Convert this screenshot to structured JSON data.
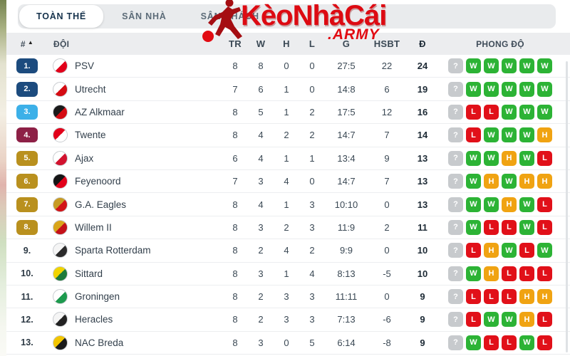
{
  "tabs": [
    {
      "id": "overall",
      "label": "TOÀN THỂ",
      "active": true
    },
    {
      "id": "home",
      "label": "SÂN NHÀ",
      "active": false
    },
    {
      "id": "away",
      "label": "SÂN KHÁCH",
      "active": false
    }
  ],
  "watermark": {
    "title": "KèoNhàCái",
    "suffix": ".ARMY",
    "icon": "soccer-player-icon",
    "color": "#e20b12"
  },
  "sort_icon": "▲",
  "form_colors": {
    "W": "#2cb335",
    "H": "#f0a312",
    "L": "#e11019",
    "?": "#c7cacd"
  },
  "badge_colors": {
    "navy": "#1c4b7e",
    "sky": "#3cb0e8",
    "maroon": "#8d2046",
    "gold": "#b9901e"
  },
  "table": {
    "headers": {
      "pos": "#",
      "team": "ĐỘI",
      "played": "TR",
      "wins": "W",
      "draws": "H",
      "losses": "L",
      "goals": "G",
      "diff": "HSBT",
      "points": "Đ",
      "form": "PHONG ĐỘ"
    },
    "rows": [
      {
        "pos": "1.",
        "badge": "#1c4b7e",
        "team": "PSV",
        "logo": {
          "c1": "#ffffff",
          "c2": "#e2001a"
        },
        "tr": "8",
        "w": "8",
        "h": "0",
        "l": "0",
        "g": "27:5",
        "diff": "22",
        "pts": "24",
        "form": [
          "?",
          "W",
          "W",
          "W",
          "W",
          "W"
        ]
      },
      {
        "pos": "2.",
        "badge": "#1c4b7e",
        "team": "Utrecht",
        "logo": {
          "c1": "#ffffff",
          "c2": "#d50b12"
        },
        "tr": "7",
        "w": "6",
        "h": "1",
        "l": "0",
        "g": "14:8",
        "diff": "6",
        "pts": "19",
        "form": [
          "?",
          "W",
          "W",
          "W",
          "W",
          "W"
        ]
      },
      {
        "pos": "3.",
        "badge": "#3cb0e8",
        "team": "AZ Alkmaar",
        "logo": {
          "c1": "#1a1a1a",
          "c2": "#d50b12"
        },
        "tr": "8",
        "w": "5",
        "h": "1",
        "l": "2",
        "g": "17:5",
        "diff": "12",
        "pts": "16",
        "form": [
          "?",
          "L",
          "L",
          "W",
          "W",
          "W"
        ]
      },
      {
        "pos": "4.",
        "badge": "#8d2046",
        "team": "Twente",
        "logo": {
          "c1": "#e2001a",
          "c2": "#ffffff"
        },
        "tr": "8",
        "w": "4",
        "h": "2",
        "l": "2",
        "g": "14:7",
        "diff": "7",
        "pts": "14",
        "form": [
          "?",
          "L",
          "W",
          "W",
          "W",
          "H"
        ]
      },
      {
        "pos": "5.",
        "badge": "#b9901e",
        "team": "Ajax",
        "logo": {
          "c1": "#ffffff",
          "c2": "#d2122e"
        },
        "tr": "6",
        "w": "4",
        "h": "1",
        "l": "1",
        "g": "13:4",
        "diff": "9",
        "pts": "13",
        "form": [
          "?",
          "W",
          "W",
          "H",
          "W",
          "L"
        ]
      },
      {
        "pos": "6.",
        "badge": "#b9901e",
        "team": "Feyenoord",
        "logo": {
          "c1": "#151515",
          "c2": "#e2001a"
        },
        "tr": "7",
        "w": "3",
        "h": "4",
        "l": "0",
        "g": "14:7",
        "diff": "7",
        "pts": "13",
        "form": [
          "?",
          "W",
          "H",
          "W",
          "H",
          "H"
        ]
      },
      {
        "pos": "7.",
        "badge": "#b9901e",
        "team": "G.A. Eagles",
        "logo": {
          "c1": "#c79b24",
          "c2": "#d21317"
        },
        "tr": "8",
        "w": "4",
        "h": "1",
        "l": "3",
        "g": "10:10",
        "diff": "0",
        "pts": "13",
        "form": [
          "?",
          "W",
          "W",
          "H",
          "W",
          "L"
        ]
      },
      {
        "pos": "8.",
        "badge": "#b9901e",
        "team": "Willem II",
        "logo": {
          "c1": "#d9a51b",
          "c2": "#c41119"
        },
        "tr": "8",
        "w": "3",
        "h": "2",
        "l": "3",
        "g": "11:9",
        "diff": "2",
        "pts": "11",
        "form": [
          "?",
          "W",
          "L",
          "L",
          "W",
          "L"
        ]
      },
      {
        "pos": "9.",
        "badge": null,
        "team": "Sparta Rotterdam",
        "logo": {
          "c1": "#f5f5f5",
          "c2": "#2b2b2b"
        },
        "tr": "8",
        "w": "2",
        "h": "4",
        "l": "2",
        "g": "9:9",
        "diff": "0",
        "pts": "10",
        "form": [
          "?",
          "L",
          "H",
          "W",
          "L",
          "W"
        ]
      },
      {
        "pos": "10.",
        "badge": null,
        "team": "Sittard",
        "logo": {
          "c1": "#f0d400",
          "c2": "#1d7a3a"
        },
        "tr": "8",
        "w": "3",
        "h": "1",
        "l": "4",
        "g": "8:13",
        "diff": "-5",
        "pts": "10",
        "form": [
          "?",
          "W",
          "H",
          "L",
          "L",
          "L"
        ]
      },
      {
        "pos": "11.",
        "badge": null,
        "team": "Groningen",
        "logo": {
          "c1": "#ffffff",
          "c2": "#1d9a4e"
        },
        "tr": "8",
        "w": "2",
        "h": "3",
        "l": "3",
        "g": "11:11",
        "diff": "0",
        "pts": "9",
        "form": [
          "?",
          "L",
          "L",
          "L",
          "H",
          "H"
        ]
      },
      {
        "pos": "12.",
        "badge": null,
        "team": "Heracles",
        "logo": {
          "c1": "#f5f5f5",
          "c2": "#222222"
        },
        "tr": "8",
        "w": "2",
        "h": "3",
        "l": "3",
        "g": "7:13",
        "diff": "-6",
        "pts": "9",
        "form": [
          "?",
          "L",
          "W",
          "W",
          "H",
          "L"
        ]
      },
      {
        "pos": "13.",
        "badge": null,
        "team": "NAC Breda",
        "logo": {
          "c1": "#f2c500",
          "c2": "#1a1a1a"
        },
        "tr": "8",
        "w": "3",
        "h": "0",
        "l": "5",
        "g": "6:14",
        "diff": "-8",
        "pts": "9",
        "form": [
          "?",
          "W",
          "L",
          "L",
          "W",
          "L"
        ]
      }
    ]
  }
}
